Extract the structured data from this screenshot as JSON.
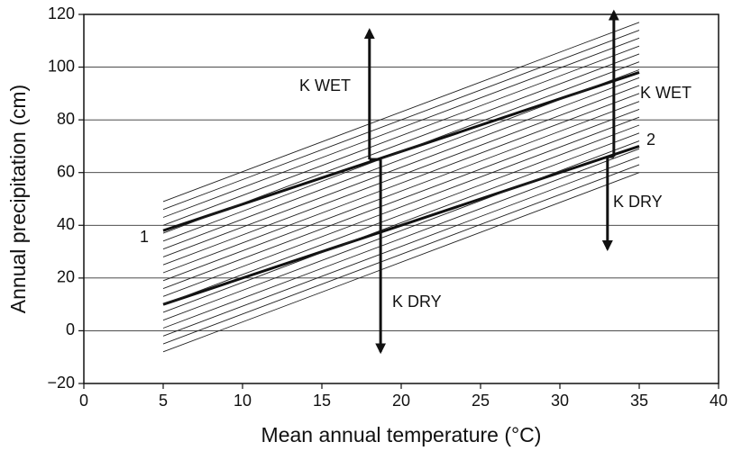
{
  "chart_data": {
    "type": "line",
    "x_label": "Mean annual temperature (°C)",
    "y_label": "Annual precipitation (cm)",
    "x": [
      5,
      35
    ],
    "xlim": [
      0,
      40
    ],
    "xticks": [
      0,
      5,
      10,
      15,
      20,
      25,
      30,
      35,
      40
    ],
    "ylim": [
      -20,
      120
    ],
    "yticks": [
      {
        "value": -20,
        "label": "−20"
      },
      0,
      20,
      40,
      60,
      80,
      100,
      120
    ],
    "grid": true,
    "series": [
      {
        "name": "1",
        "color": "#111111",
        "line_width": 3,
        "values": [
          38,
          98
        ]
      },
      {
        "name": "2",
        "color": "#111111",
        "line_width": 3,
        "values": [
          10,
          70
        ]
      },
      {
        "color": "#222222",
        "line_width": 0.9,
        "values": [
          49,
          117
        ]
      },
      {
        "color": "#222222",
        "line_width": 0.9,
        "values": [
          46,
          114
        ]
      },
      {
        "color": "#222222",
        "line_width": 0.9,
        "values": [
          43,
          111
        ]
      },
      {
        "color": "#222222",
        "line_width": 0.9,
        "values": [
          40,
          108
        ]
      },
      {
        "color": "#222222",
        "line_width": 0.9,
        "values": [
          37,
          105
        ]
      },
      {
        "color": "#222222",
        "line_width": 0.9,
        "values": [
          34,
          102
        ]
      },
      {
        "color": "#222222",
        "line_width": 0.9,
        "values": [
          31,
          99
        ]
      },
      {
        "color": "#222222",
        "line_width": 0.9,
        "values": [
          28,
          96
        ]
      },
      {
        "color": "#222222",
        "line_width": 0.9,
        "values": [
          25,
          93
        ]
      },
      {
        "color": "#222222",
        "line_width": 0.9,
        "values": [
          22,
          90
        ]
      },
      {
        "color": "#222222",
        "line_width": 0.9,
        "values": [
          19,
          87
        ]
      },
      {
        "color": "#222222",
        "line_width": 0.9,
        "values": [
          16,
          84
        ]
      },
      {
        "color": "#222222",
        "line_width": 0.9,
        "values": [
          13,
          81
        ]
      },
      {
        "color": "#222222",
        "line_width": 0.9,
        "values": [
          10,
          78
        ]
      },
      {
        "color": "#222222",
        "line_width": 0.9,
        "values": [
          7,
          75
        ]
      },
      {
        "color": "#222222",
        "line_width": 0.9,
        "values": [
          4,
          72
        ]
      },
      {
        "color": "#222222",
        "line_width": 0.9,
        "values": [
          1,
          69
        ]
      },
      {
        "color": "#222222",
        "line_width": 0.9,
        "values": [
          -2,
          66
        ]
      },
      {
        "color": "#222222",
        "line_width": 0.9,
        "values": [
          -5,
          63
        ]
      },
      {
        "color": "#222222",
        "line_width": 0.9,
        "values": [
          -8,
          60
        ]
      }
    ],
    "arrows": [
      {
        "x": 18,
        "y": [
          65,
          114
        ]
      },
      {
        "x": 18.7,
        "y": [
          65,
          -8
        ]
      },
      {
        "x": 33.4,
        "y": [
          66,
          121
        ]
      },
      {
        "x": 33,
        "y": [
          66,
          31
        ]
      }
    ],
    "annotations": [
      {
        "text": "K WET"
      },
      {
        "text": "K DRY"
      },
      {
        "text": "K WET"
      },
      {
        "text": "K DRY"
      }
    ]
  }
}
